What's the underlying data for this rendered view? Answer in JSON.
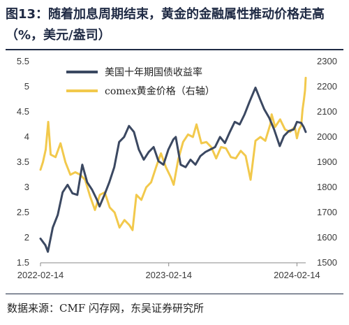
{
  "title": "图13：随着加息周期结束，黄金的金融属性推动价格走高（%，美元/盎司）",
  "source": "数据来源：CMF 闪存网，东吴证券研究所",
  "colors": {
    "series1": "#3b4861",
    "series2": "#f2c94c",
    "axis": "#888888"
  },
  "chart_data": {
    "type": "line",
    "title": "",
    "x_ticks": [
      "2022-02-14",
      "2023-02-14",
      "2024-02-14"
    ],
    "x_range": [
      "2022-02-14",
      "2024-03-10"
    ],
    "y_left": {
      "range": [
        1.5,
        5.5
      ],
      "ticks": [
        "1.5",
        "2",
        "2.5",
        "3",
        "3.5",
        "4",
        "4.5",
        "5",
        "5.5"
      ]
    },
    "y_right": {
      "range": [
        1500,
        2300
      ],
      "ticks": [
        "1500",
        "1600",
        "1700",
        "1800",
        "1900",
        "2000",
        "2100",
        "2200",
        "2300"
      ]
    },
    "legend_position": "top-center",
    "series": [
      {
        "name": "美国十年期国债收益率",
        "axis": "left",
        "points": [
          [
            "2022-02-14",
            1.98
          ],
          [
            "2022-02-28",
            1.85
          ],
          [
            "2022-03-07",
            1.72
          ],
          [
            "2022-03-21",
            2.2
          ],
          [
            "2022-04-04",
            2.45
          ],
          [
            "2022-04-18",
            2.9
          ],
          [
            "2022-05-02",
            3.05
          ],
          [
            "2022-05-16",
            2.88
          ],
          [
            "2022-05-30",
            2.85
          ],
          [
            "2022-06-13",
            3.45
          ],
          [
            "2022-06-27",
            3.1
          ],
          [
            "2022-07-11",
            2.95
          ],
          [
            "2022-07-25",
            2.75
          ],
          [
            "2022-08-01",
            2.62
          ],
          [
            "2022-08-15",
            2.85
          ],
          [
            "2022-08-29",
            3.1
          ],
          [
            "2022-09-12",
            3.4
          ],
          [
            "2022-09-26",
            3.9
          ],
          [
            "2022-10-10",
            4.0
          ],
          [
            "2022-10-24",
            4.22
          ],
          [
            "2022-11-07",
            4.1
          ],
          [
            "2022-11-21",
            3.75
          ],
          [
            "2022-12-05",
            3.55
          ],
          [
            "2022-12-19",
            3.7
          ],
          [
            "2023-01-02",
            3.8
          ],
          [
            "2023-01-16",
            3.52
          ],
          [
            "2023-01-30",
            3.45
          ],
          [
            "2023-02-13",
            3.75
          ],
          [
            "2023-02-27",
            3.95
          ],
          [
            "2023-03-06",
            4.0
          ],
          [
            "2023-03-20",
            3.45
          ],
          [
            "2023-04-03",
            3.4
          ],
          [
            "2023-04-17",
            3.55
          ],
          [
            "2023-05-01",
            3.45
          ],
          [
            "2023-05-15",
            3.62
          ],
          [
            "2023-05-29",
            3.7
          ],
          [
            "2023-06-12",
            3.75
          ],
          [
            "2023-06-26",
            3.8
          ],
          [
            "2023-07-10",
            4.0
          ],
          [
            "2023-07-24",
            3.88
          ],
          [
            "2023-08-07",
            4.1
          ],
          [
            "2023-08-21",
            4.3
          ],
          [
            "2023-09-04",
            4.25
          ],
          [
            "2023-09-18",
            4.45
          ],
          [
            "2023-10-02",
            4.7
          ],
          [
            "2023-10-19",
            4.98
          ],
          [
            "2023-11-01",
            4.75
          ],
          [
            "2023-11-13",
            4.55
          ],
          [
            "2023-11-27",
            4.38
          ],
          [
            "2023-12-11",
            4.15
          ],
          [
            "2023-12-27",
            3.82
          ],
          [
            "2024-01-08",
            4.02
          ],
          [
            "2024-01-22",
            4.12
          ],
          [
            "2024-02-05",
            4.15
          ],
          [
            "2024-02-14",
            4.3
          ],
          [
            "2024-02-26",
            4.28
          ],
          [
            "2024-03-04",
            4.2
          ],
          [
            "2024-03-10",
            4.1
          ]
        ]
      },
      {
        "name": "comex黄金价格（右轴）",
        "axis": "right",
        "points": [
          [
            "2022-02-14",
            1870
          ],
          [
            "2022-02-21",
            1900
          ],
          [
            "2022-03-01",
            1950
          ],
          [
            "2022-03-08",
            2060
          ],
          [
            "2022-03-15",
            1930
          ],
          [
            "2022-03-29",
            1920
          ],
          [
            "2022-04-12",
            1975
          ],
          [
            "2022-04-26",
            1900
          ],
          [
            "2022-05-10",
            1850
          ],
          [
            "2022-05-24",
            1860
          ],
          [
            "2022-06-07",
            1850
          ],
          [
            "2022-06-21",
            1830
          ],
          [
            "2022-07-05",
            1765
          ],
          [
            "2022-07-19",
            1710
          ],
          [
            "2022-08-02",
            1770
          ],
          [
            "2022-08-16",
            1780
          ],
          [
            "2022-08-30",
            1720
          ],
          [
            "2022-09-13",
            1700
          ],
          [
            "2022-09-27",
            1640
          ],
          [
            "2022-10-11",
            1670
          ],
          [
            "2022-10-25",
            1650
          ],
          [
            "2022-11-03",
            1630
          ],
          [
            "2022-11-14",
            1770
          ],
          [
            "2022-11-28",
            1750
          ],
          [
            "2022-12-12",
            1800
          ],
          [
            "2022-12-26",
            1820
          ],
          [
            "2023-01-09",
            1880
          ],
          [
            "2023-01-23",
            1935
          ],
          [
            "2023-02-06",
            1880
          ],
          [
            "2023-02-20",
            1840
          ],
          [
            "2023-02-28",
            1810
          ],
          [
            "2023-03-13",
            1910
          ],
          [
            "2023-03-27",
            1980
          ],
          [
            "2023-04-10",
            2010
          ],
          [
            "2023-04-24",
            2000
          ],
          [
            "2023-05-04",
            2050
          ],
          [
            "2023-05-18",
            1975
          ],
          [
            "2023-06-01",
            1980
          ],
          [
            "2023-06-15",
            1960
          ],
          [
            "2023-06-29",
            1915
          ],
          [
            "2023-07-13",
            1960
          ],
          [
            "2023-07-27",
            1955
          ],
          [
            "2023-08-10",
            1920
          ],
          [
            "2023-08-24",
            1915
          ],
          [
            "2023-09-07",
            1945
          ],
          [
            "2023-09-21",
            1925
          ],
          [
            "2023-10-05",
            1830
          ],
          [
            "2023-10-19",
            1985
          ],
          [
            "2023-11-02",
            2000
          ],
          [
            "2023-11-16",
            1985
          ],
          [
            "2023-11-30",
            2050
          ],
          [
            "2023-12-04",
            2090
          ],
          [
            "2023-12-14",
            2040
          ],
          [
            "2023-12-28",
            2070
          ],
          [
            "2024-01-11",
            2030
          ],
          [
            "2024-01-25",
            2020
          ],
          [
            "2024-02-08",
            2040
          ],
          [
            "2024-02-14",
            1995
          ],
          [
            "2024-02-20",
            2030
          ],
          [
            "2024-02-26",
            2045
          ],
          [
            "2024-03-01",
            2110
          ],
          [
            "2024-03-05",
            2150
          ],
          [
            "2024-03-08",
            2185
          ],
          [
            "2024-03-10",
            2235
          ]
        ]
      }
    ]
  }
}
